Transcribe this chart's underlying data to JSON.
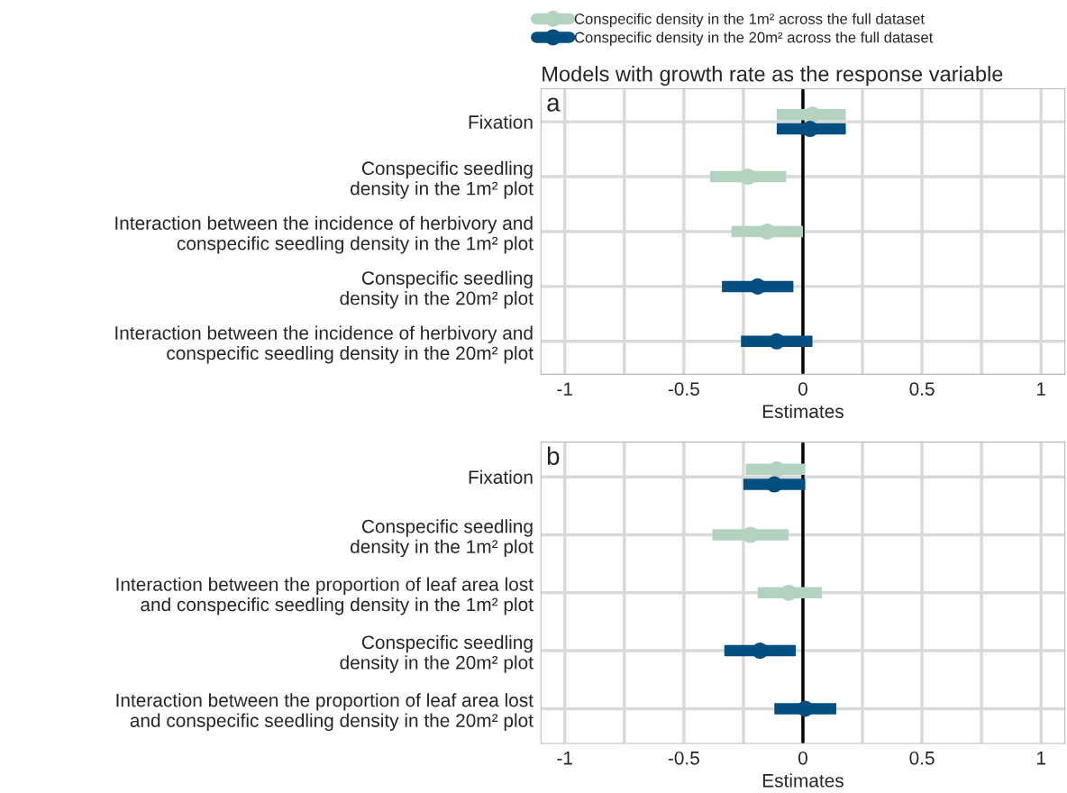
{
  "chart_data": [
    {
      "type": "scatter",
      "orientation": "horizontal",
      "title": "Models with growth rate as the response variable",
      "xlabel": "Estimates",
      "categories": [
        "Fixation",
        "Conspecific seedling\ndensity in the 1m² plot",
        "Interaction between the incidence of herbivory and\nconspecific seedling density in the 1m² plot",
        "Conspecific seedling\ndensity in the 20m² plot",
        "Interaction between the incidence of herbivory and\nconspecific seedling density in the 20m² plot"
      ],
      "series": [
        {
          "name": "Conspecific density in the 1m² across the full dataset",
          "color": "#b3d3c0",
          "values": [
            0.04,
            -0.23,
            -0.15,
            null,
            null
          ],
          "errors": [
            [
              -0.11,
              0.18
            ],
            [
              -0.39,
              -0.07
            ],
            [
              -0.3,
              0.0
            ],
            null,
            null
          ]
        },
        {
          "name": "Conspecific density in the 20m² across the full dataset",
          "color": "#004f80",
          "values": [
            0.03,
            null,
            null,
            -0.19,
            -0.11
          ],
          "errors": [
            [
              -0.11,
              0.18
            ],
            null,
            null,
            [
              -0.34,
              -0.04
            ],
            [
              -0.26,
              0.04
            ]
          ]
        }
      ],
      "xlim": [
        -1.1,
        1.1
      ],
      "xticks": [
        -1,
        {
          "value": -0.75,
          "label": null
        },
        -0.5,
        {
          "value": -0.25,
          "label": null
        },
        0,
        {
          "value": 0.25,
          "label": null
        },
        0.5,
        {
          "value": 0.75,
          "label": null
        },
        1
      ],
      "ref_lines": [
        {
          "axis": "x",
          "value": 0,
          "color": "#000000"
        }
      ],
      "grid": true,
      "legend": "top",
      "marker": "circle",
      "annotations": [
        "a"
      ]
    },
    {
      "type": "scatter",
      "orientation": "horizontal",
      "xlabel": "Estimates",
      "categories": [
        "Fixation",
        "Conspecific seedling\ndensity in the 1m² plot",
        "Interaction between the proportion of leaf area lost\nand conspecific seedling density in the 1m² plot",
        "Conspecific seedling\ndensity in the 20m² plot",
        "Interaction between the proportion of leaf area lost\nand conspecific seedling density in the 20m² plot"
      ],
      "series": [
        {
          "color": "#b3d3c0",
          "values": [
            -0.11,
            -0.22,
            -0.06,
            null,
            null
          ],
          "errors": [
            [
              -0.24,
              0.01
            ],
            [
              -0.38,
              -0.06
            ],
            [
              -0.19,
              0.08
            ],
            null,
            null
          ]
        },
        {
          "color": "#004f80",
          "values": [
            -0.12,
            null,
            null,
            -0.18,
            0.01
          ],
          "errors": [
            [
              -0.25,
              0.01
            ],
            null,
            null,
            [
              -0.33,
              -0.03
            ],
            [
              -0.12,
              0.14
            ]
          ]
        }
      ],
      "xlim": [
        -1.1,
        1.1
      ],
      "xticks": [
        -1,
        {
          "value": -0.75,
          "label": null
        },
        -0.5,
        {
          "value": -0.25,
          "label": null
        },
        0,
        {
          "value": 0.25,
          "label": null
        },
        0.5,
        {
          "value": 0.75,
          "label": null
        },
        1
      ],
      "ref_lines": [
        {
          "axis": "x",
          "value": 0,
          "color": "#000000"
        }
      ],
      "grid": true,
      "marker": "circle",
      "annotations": [
        "b"
      ]
    }
  ]
}
